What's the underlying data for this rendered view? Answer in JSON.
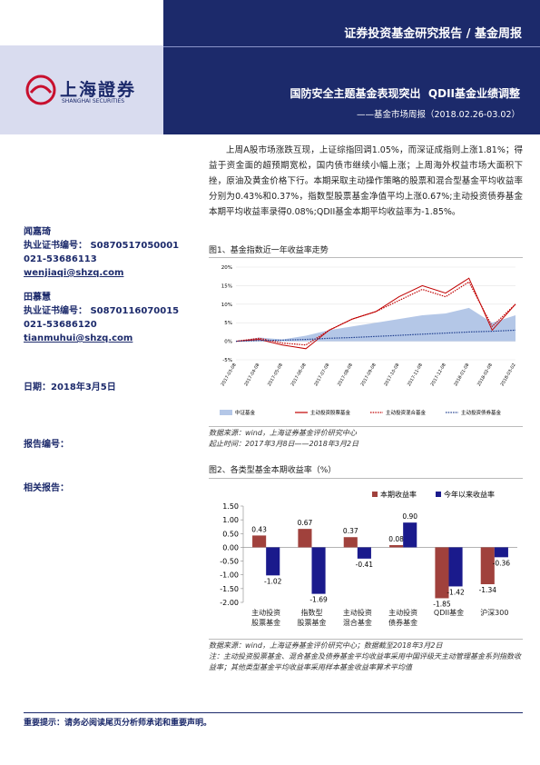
{
  "header": {
    "series": "证券投资基金研究报告 / 基金周报",
    "logo_cn": "上海證券",
    "logo_en": "SHANGHAI SECURITIES",
    "title": "国防安全主题基金表现突出  QDII基金业绩调整",
    "subtitle": "——基金市场周报（2018.02.26-03.02）"
  },
  "sidebar": {
    "analysts": [
      {
        "name": "闻嘉琦",
        "cert_label": "执业证书编号：",
        "cert": "S0870517050001",
        "phone": "021-53686113",
        "email": "wenjiaqi@shzq.com"
      },
      {
        "name": "田慕慧",
        "cert_label": "执业证书编号：",
        "cert": "S0870116070015",
        "phone": "021-53686120",
        "email": "tianmuhui@shzq.com"
      }
    ],
    "date": "日期：2018年3月5日",
    "report_no": "报告编号：",
    "related": "相关报告："
  },
  "summary": "上周A股市场涨跌互现，上证综指回调1.05%，而深证成指则上涨1.81%；得益于资金面的超预期宽松，国内债市继续小幅上涨；上周海外权益市场大面积下挫，原油及黄金价格下行。本期采取主动操作策略的股票和混合型基金平均收益率分别为0.43%和0.37%，指数型股票基金净值平均上涨0.67%;主动投资债券基金本期平均收益率录得0.08%;QDII基金本期平均收益率为-1.85%。",
  "figures": [
    {
      "caption": "图1、基金指数近一年收益率走势",
      "chart_data": {
        "type": "line",
        "x": [
          "2017-03-08",
          "2017-04-08",
          "2017-05-08",
          "2017-06-08",
          "2017-07-08",
          "2017-08-08",
          "2017-09-08",
          "2017-10-08",
          "2017-11-08",
          "2017-12-08",
          "2018-01-08",
          "2018-02-08",
          "2018-03-02"
        ],
        "series": [
          {
            "name": "中证基金",
            "color": "#b4c7e7",
            "line_style": "area",
            "values": [
              0,
              1,
              0.5,
              1.5,
              3,
              4,
              5,
              6,
              7,
              7.5,
              9,
              5,
              7
            ]
          },
          {
            "name": "主动投资股票基金",
            "color": "#c00000",
            "line_style": "solid",
            "values": [
              0,
              0.5,
              -1,
              -2,
              3,
              6,
              8,
              12,
              15,
              13,
              17,
              3,
              10
            ]
          },
          {
            "name": "主动投资混合基金",
            "color": "#c00000",
            "line_style": "dotted",
            "values": [
              0,
              0.8,
              -0.5,
              -1,
              3,
              6,
              8,
              11,
              14,
              12,
              16,
              4,
              10
            ]
          },
          {
            "name": "主动投资债券基金",
            "color": "#1f3f8f",
            "line_style": "dotted",
            "values": [
              0,
              0.2,
              0.3,
              0.5,
              0.8,
              1,
              1.3,
              1.6,
              1.9,
              2.2,
              2.5,
              2.7,
              3
            ]
          }
        ],
        "ylim": [
          -5,
          20
        ],
        "yticks": [
          {
            "value": -5,
            "label": "-5%"
          },
          {
            "value": 0,
            "label": "0%"
          },
          {
            "value": 5,
            "label": "5%"
          },
          {
            "value": 10,
            "label": "10%"
          },
          {
            "value": 15,
            "label": "15%"
          },
          {
            "value": 20,
            "label": "20%"
          }
        ],
        "legend": "bottom"
      },
      "notes": [
        "数据来源：wind，上海证券基金评价研究中心",
        "起止时间：2017年3月8日——2018年3月2日"
      ]
    },
    {
      "caption": "图2、各类型基金本期收益率（%）",
      "chart_data": {
        "type": "bar",
        "categories": [
          "主动投资\n股票基金",
          "指数型\n股票基金",
          "主动投资\n混合基金",
          "主动投资\n债券基金",
          "QDII基金",
          "沪深300"
        ],
        "series": [
          {
            "name": "本期收益率",
            "color": "#a0413c",
            "values": [
              0.43,
              0.67,
              0.37,
              0.08,
              -1.85,
              -1.34
            ],
            "value_labels": [
              "0.43",
              "0.67",
              "0.37",
              "0.08",
              "-1.85",
              "-1.34"
            ]
          },
          {
            "name": "今年以来收益率",
            "color": "#1a1a8c",
            "values": [
              -1.02,
              -1.69,
              -0.41,
              0.9,
              -1.42,
              -0.36
            ],
            "value_labels": [
              "-1.02",
              "-1.69",
              "-0.41",
              "0.90",
              "-1.42",
              "-0.36"
            ]
          }
        ],
        "ylim": [
          -2,
          1.5
        ],
        "yticks": [
          {
            "value": -2,
            "label": "-2.00"
          },
          {
            "value": -1.5,
            "label": "-1.50"
          },
          {
            "value": -1,
            "label": "-1.00"
          },
          {
            "value": -0.5,
            "label": "-0.50"
          },
          {
            "value": 0,
            "label": "0.00"
          },
          {
            "value": 0.5,
            "label": "0.50"
          },
          {
            "value": 1,
            "label": "1.00"
          },
          {
            "value": 1.5,
            "label": "1.50"
          }
        ],
        "legend": "top-right"
      },
      "notes": [
        "数据来源：wind，上海证券基金评价研究中心；数据截至2018年3月2日",
        "注：主动投资股票基金、混合基金及债券基金平均收益率采用中国评级天主动管理基金系列指数收益率；其他类型基金平均收益率采用样本基金收益率算术平均值"
      ]
    }
  ],
  "footer": "重要提示：请务必阅读尾页分析师承诺和重要声明。"
}
